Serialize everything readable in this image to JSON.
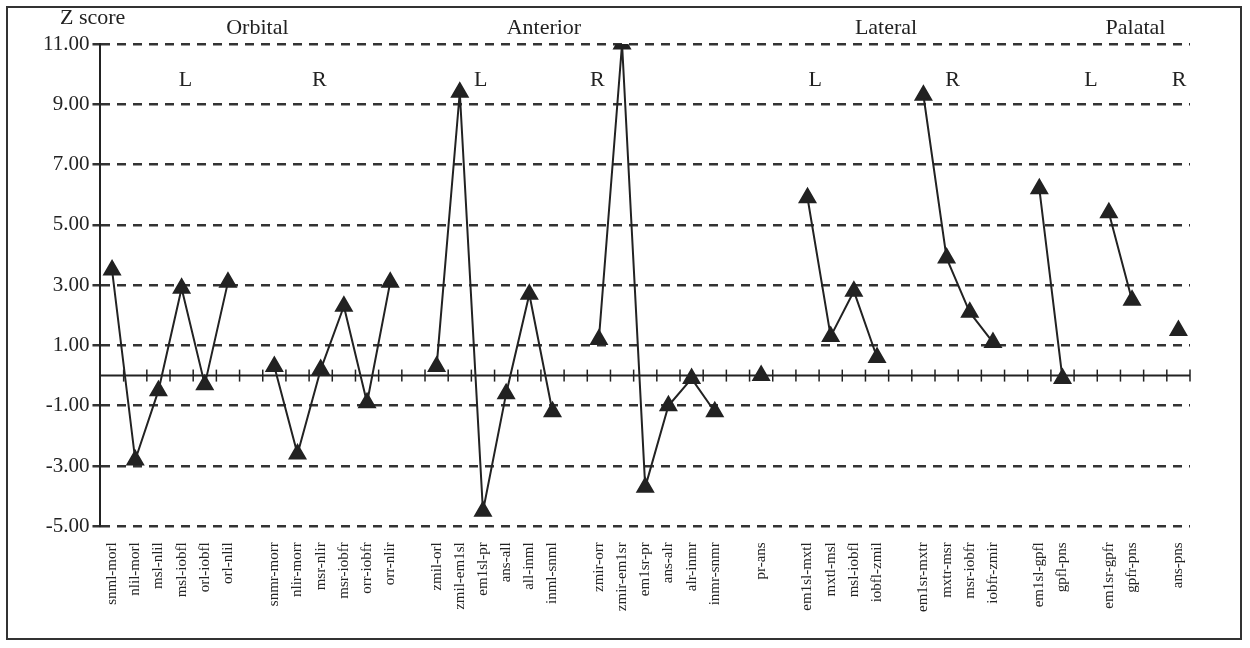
{
  "chart_data": {
    "type": "line",
    "ylabel": "Z score",
    "categories": [
      "snml-morl",
      "nlil-morl",
      "msl-nlil",
      "msl-iobfl",
      "orl-iobfl",
      "orl-nlil",
      null,
      "snmr-morr",
      "nlir-morr",
      "msr-nlir",
      "msr-iobfr",
      "orr-iobfr",
      "orr-nlir",
      null,
      "zmil-orl",
      "zmil-em1sl",
      "em1sl-pr",
      "ans-all",
      "all-inml",
      "inml-snml",
      null,
      "zmir-orr",
      "zmir-em1sr",
      "em1sr-pr",
      "ans-alr",
      "alr-inmr",
      "inmr-snmr",
      null,
      "pr-ans",
      null,
      "em1sl-mxtl",
      "mxtl-msl",
      "msl-iobfl",
      "iobfl-zmil",
      null,
      "em1sr-mxtr",
      "mxtr-msr",
      "msr-iobfr",
      "iobfr-zmir",
      null,
      "em1sl-gpfl",
      "gpfl-pns",
      null,
      "em1sr-gpfr",
      "gpfr-pns",
      null,
      "ans-pns"
    ],
    "series": [
      {
        "color": "#222222",
        "values": [
          3.5,
          -2.8,
          -0.5,
          2.9,
          -0.3,
          3.1,
          null,
          0.3,
          -2.6,
          0.2,
          2.3,
          -0.9,
          3.1,
          null,
          0.3,
          9.4,
          -4.5,
          -0.6,
          2.7,
          -1.2,
          null,
          1.2,
          11.0,
          -3.7,
          -1.0,
          -0.1,
          -1.2,
          null,
          0.0,
          null,
          5.9,
          1.3,
          2.8,
          0.6,
          null,
          9.3,
          3.9,
          2.1,
          1.1,
          null,
          6.2,
          -0.1,
          null,
          5.4,
          2.5,
          null,
          1.5
        ]
      }
    ],
    "ylim": [
      -5,
      11
    ],
    "yticks": [
      {
        "value": -5,
        "label": "-5.00"
      },
      {
        "value": -3,
        "label": "-3.00"
      },
      {
        "value": -1,
        "label": "-1.00"
      },
      {
        "value": 1,
        "label": "1.00"
      },
      {
        "value": 3,
        "label": "3.00"
      },
      {
        "value": 5,
        "label": "5.00"
      },
      {
        "value": 7,
        "label": "7.00"
      },
      {
        "value": 9,
        "label": "9.00"
      },
      {
        "value": 11,
        "label": "11.00"
      }
    ],
    "grid": "y",
    "legend": false,
    "marker": "triangle",
    "line_style": "solid",
    "annotations": [
      "Orbital",
      "L",
      "R",
      "Anterior",
      "L",
      "R",
      "Lateral",
      "L",
      "R",
      "Palatal",
      "L",
      "R"
    ]
  }
}
